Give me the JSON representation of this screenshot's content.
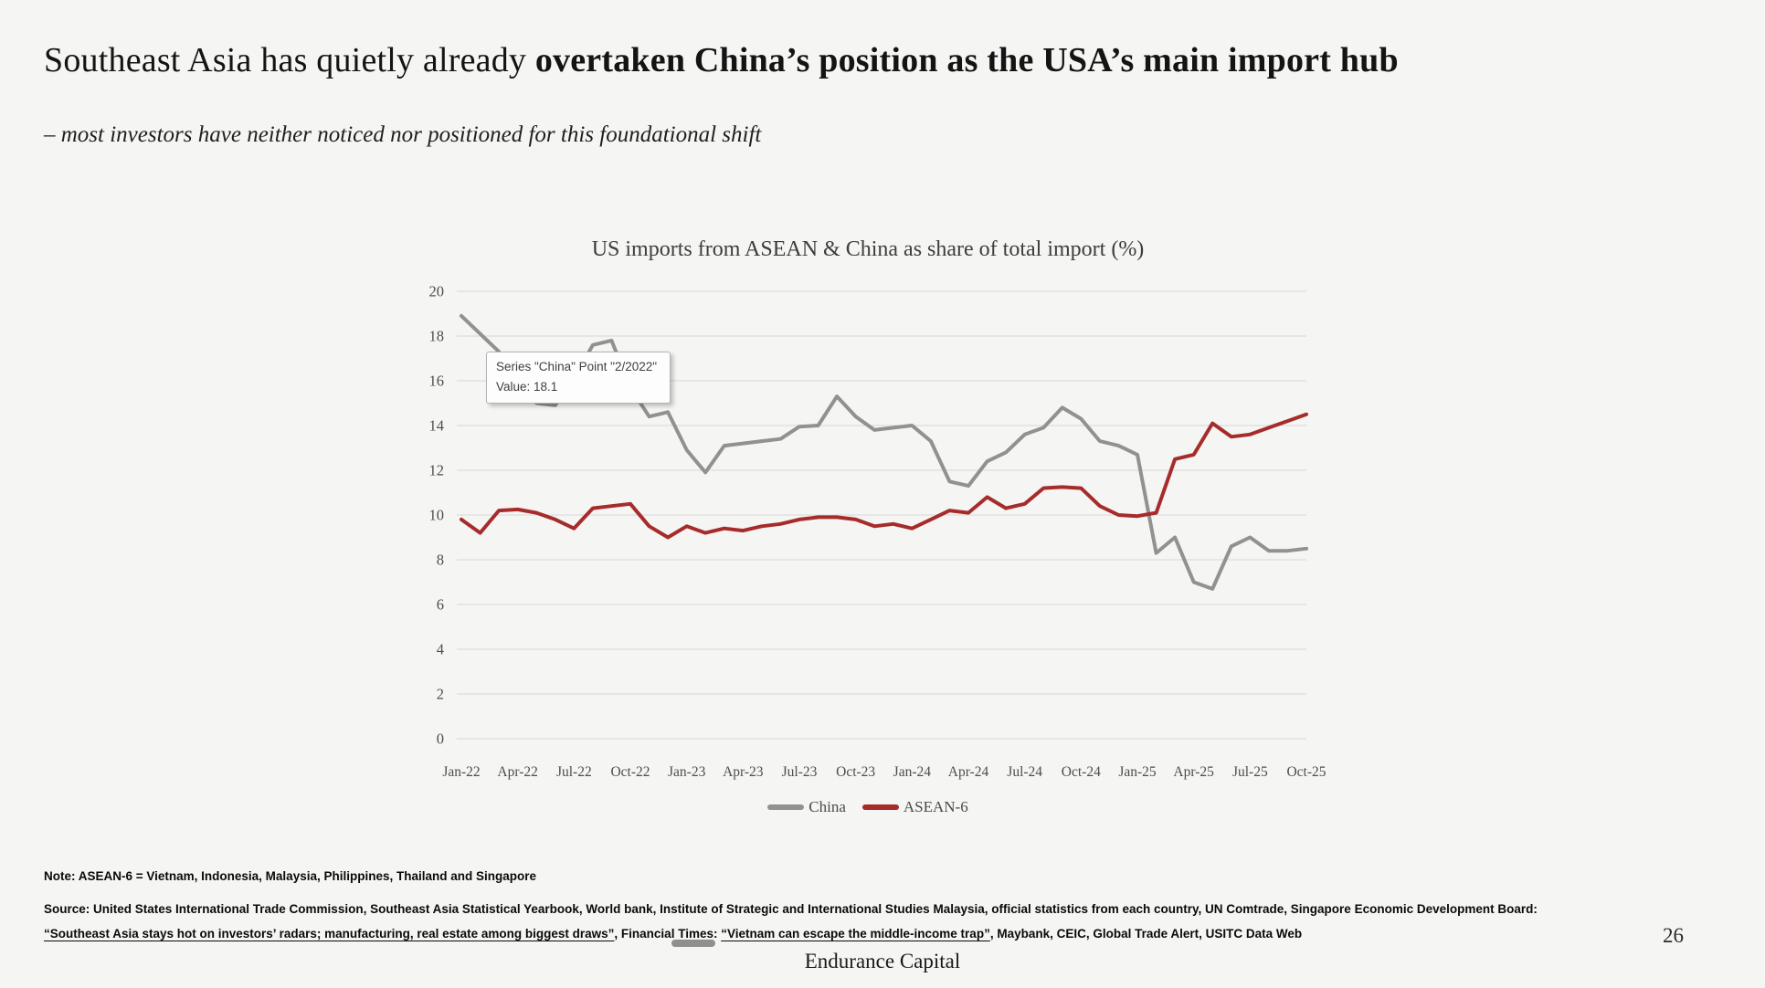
{
  "slide": {
    "title_regular": "Southeast Asia has quietly already ",
    "title_bold": "overtaken China’s position as the USA’s main import hub",
    "subtitle": "– most investors have neither noticed nor positioned for this foundational shift",
    "page_number": "26",
    "footer": "Endurance Capital"
  },
  "chart_data": {
    "type": "line",
    "title": "US imports from ASEAN & China as share of total import (%)",
    "x_tick_labels": [
      "Jan-22",
      "Apr-22",
      "Jul-22",
      "Oct-22",
      "Jan-23",
      "Apr-23",
      "Jul-23",
      "Oct-23",
      "Jan-24",
      "Apr-24",
      "Jul-24",
      "Oct-24",
      "Jan-25",
      "Apr-25",
      "Jul-25",
      "Oct-25"
    ],
    "x_frequency": "monthly",
    "n_points": 46,
    "y_ticks": [
      0,
      2,
      4,
      6,
      8,
      10,
      12,
      14,
      16,
      18,
      20
    ],
    "ylim": [
      0,
      20
    ],
    "grid": true,
    "gridline_color": "#d8d8d8",
    "axis_text_color": "#4d4d4d",
    "legend_position": "bottom",
    "series": [
      {
        "name": "China",
        "color": "#919191",
        "values": [
          18.9,
          18.1,
          17.3,
          15.9,
          15.0,
          14.9,
          16.1,
          17.6,
          17.8,
          15.7,
          14.4,
          14.6,
          12.9,
          11.9,
          13.1,
          13.2,
          13.3,
          13.4,
          13.95,
          14.0,
          15.3,
          14.4,
          13.8,
          13.9,
          14.0,
          13.3,
          11.5,
          11.3,
          12.4,
          12.8,
          13.6,
          13.9,
          14.8,
          14.3,
          13.3,
          13.1,
          12.7,
          8.3,
          9.0,
          7.0,
          6.7,
          8.6,
          9.0,
          8.4,
          8.4,
          8.5
        ]
      },
      {
        "name": "ASEAN-6",
        "color": "#A62C2C",
        "values": [
          9.8,
          9.2,
          10.2,
          10.25,
          10.1,
          9.8,
          9.4,
          10.3,
          10.4,
          10.5,
          9.5,
          9.0,
          9.5,
          9.2,
          9.4,
          9.3,
          9.5,
          9.6,
          9.8,
          9.9,
          9.9,
          9.8,
          9.5,
          9.6,
          9.4,
          9.8,
          10.2,
          10.1,
          10.8,
          10.3,
          10.5,
          11.2,
          11.25,
          11.2,
          10.4,
          10.0,
          9.95,
          10.1,
          12.5,
          12.7,
          14.1,
          13.5,
          13.6,
          13.9,
          14.2,
          14.5
        ]
      }
    ]
  },
  "tooltip": {
    "line1": "Series \"China\" Point \"2/2022\"",
    "line2": "Value: 18.1"
  },
  "notes": {
    "note": "Note: ASEAN-6 = Vietnam, Indonesia, Malaysia, Philippines, Thailand and Singapore",
    "source_line1": "Source: United States International Trade Commission, Southeast Asia Statistical Yearbook, World bank, Institute of Strategic and International Studies Malaysia, official statistics from each country, UN Comtrade, Singapore Economic Development Board:",
    "source2_q1": "“Southeast Asia stays hot on investors’ radars; manufacturing, real estate among biggest draws”",
    "source2_mid": ", Financial Times: ",
    "source2_q2": "“Vietnam can escape the middle-income trap”",
    "source2_end": ", Maybank, CEIC, Global Trade Alert, USITC Data Web"
  }
}
